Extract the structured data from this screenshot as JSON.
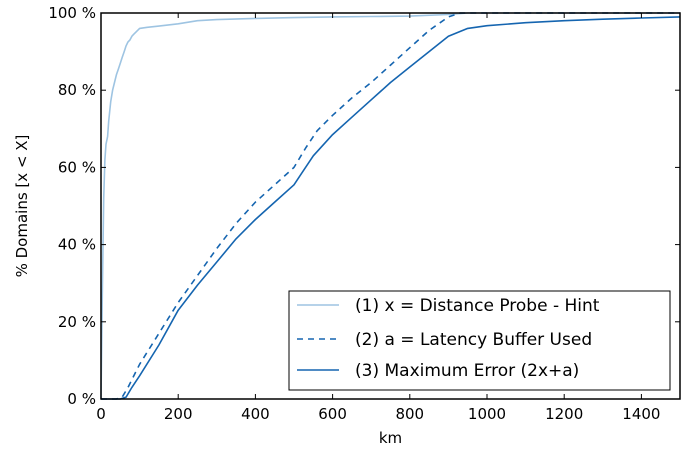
{
  "chart_data": {
    "type": "line",
    "xlabel": "km",
    "ylabel": "% Domains [x < X]",
    "xlim": [
      0,
      1500
    ],
    "ylim": [
      0,
      100
    ],
    "x_ticks": [
      0,
      200,
      400,
      600,
      800,
      1000,
      1200,
      1400
    ],
    "y_ticks": [
      0,
      20,
      40,
      60,
      80,
      100
    ],
    "y_tick_labels": [
      "0 %",
      "20 %",
      "40 %",
      "60 %",
      "80 %",
      "100 %"
    ],
    "grid": false,
    "legend_position": "lower-right",
    "series": [
      {
        "name": "(1) x = Distance Probe - Hint",
        "color": "#9ec4e2",
        "style": "solid",
        "x": [
          0,
          3,
          7,
          10,
          13,
          17,
          20,
          25,
          30,
          35,
          40,
          45,
          50,
          55,
          60,
          65,
          70,
          75,
          80,
          85,
          90,
          100,
          120,
          150,
          200,
          250,
          300,
          400,
          500,
          600,
          700,
          800,
          900,
          950,
          1000,
          1200,
          1500
        ],
        "y": [
          0,
          25,
          52,
          62,
          66,
          68,
          72,
          77,
          80,
          82,
          84,
          85.5,
          87,
          88.5,
          90,
          91.5,
          92.5,
          93,
          94,
          94.5,
          95,
          96,
          96.3,
          96.6,
          97.2,
          98,
          98.3,
          98.6,
          98.8,
          99,
          99.1,
          99.2,
          99.6,
          100,
          100,
          100,
          100
        ]
      },
      {
        "name": "(2) a = Latency Buffer Used",
        "color": "#1565b0",
        "style": "dashed",
        "x": [
          0,
          40,
          55,
          70,
          100,
          150,
          200,
          250,
          300,
          350,
          400,
          450,
          500,
          530,
          560,
          600,
          650,
          700,
          750,
          800,
          850,
          900,
          930,
          950,
          1000,
          1200,
          1500
        ],
        "y": [
          0,
          0,
          0.5,
          3,
          9,
          17,
          25,
          32,
          39,
          45.5,
          51,
          55.5,
          60,
          65,
          69.5,
          73.5,
          78,
          82,
          86.5,
          91,
          95.5,
          99,
          100,
          100,
          100,
          100,
          100
        ]
      },
      {
        "name": "(3) Maximum Error (2x+a)",
        "color": "#1565b0",
        "style": "solid",
        "x": [
          0,
          50,
          65,
          80,
          100,
          150,
          200,
          250,
          300,
          350,
          400,
          450,
          500,
          520,
          550,
          600,
          650,
          700,
          750,
          800,
          850,
          900,
          950,
          1000,
          1100,
          1200,
          1300,
          1400,
          1500
        ],
        "y": [
          0,
          0,
          0.5,
          3,
          6,
          14,
          23,
          29.5,
          35.5,
          41.5,
          46.5,
          51,
          55.5,
          58.5,
          63,
          68.5,
          73,
          77.5,
          82,
          86,
          90,
          94,
          96,
          96.7,
          97.5,
          98,
          98.4,
          98.7,
          99
        ]
      }
    ]
  }
}
